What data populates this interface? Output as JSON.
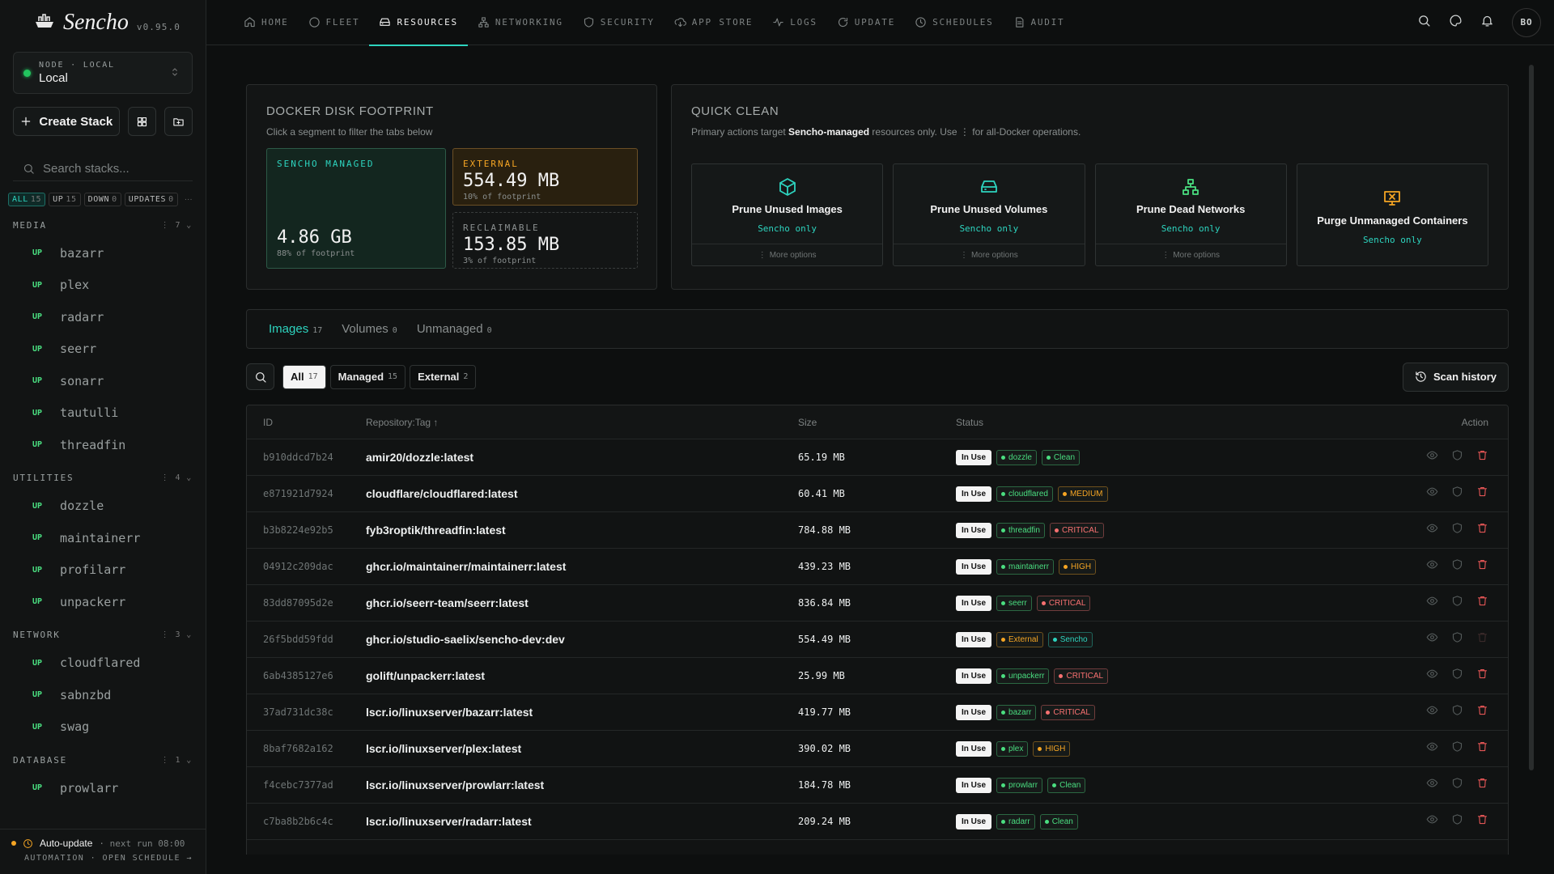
{
  "brand": {
    "name": "Sencho",
    "version": "v0.95.0"
  },
  "nav": {
    "items": [
      "HOME",
      "FLEET",
      "RESOURCES",
      "NETWORKING",
      "SECURITY",
      "APP STORE",
      "LOGS",
      "UPDATE",
      "SCHEDULES",
      "AUDIT"
    ],
    "active": "RESOURCES"
  },
  "user": "BO",
  "node": {
    "label": "NODE · LOCAL",
    "name": "Local"
  },
  "create_stack": "Create Stack",
  "search_placeholder": "Search stacks...",
  "filters": {
    "items": [
      {
        "label": "ALL",
        "count": 15
      },
      {
        "label": "UP",
        "count": 15
      },
      {
        "label": "DOWN",
        "count": 0
      },
      {
        "label": "UPDATES",
        "count": 0
      }
    ],
    "active": "ALL"
  },
  "groups": [
    {
      "name": "MEDIA",
      "count": 7,
      "stacks": [
        {
          "status": "UP",
          "name": "bazarr"
        },
        {
          "status": "UP",
          "name": "plex"
        },
        {
          "status": "UP",
          "name": "radarr"
        },
        {
          "status": "UP",
          "name": "seerr"
        },
        {
          "status": "UP",
          "name": "sonarr"
        },
        {
          "status": "UP",
          "name": "tautulli"
        },
        {
          "status": "UP",
          "name": "threadfin"
        }
      ]
    },
    {
      "name": "UTILITIES",
      "count": 4,
      "stacks": [
        {
          "status": "UP",
          "name": "dozzle"
        },
        {
          "status": "UP",
          "name": "maintainerr"
        },
        {
          "status": "UP",
          "name": "profilarr"
        },
        {
          "status": "UP",
          "name": "unpackerr"
        }
      ]
    },
    {
      "name": "NETWORK",
      "count": 3,
      "stacks": [
        {
          "status": "UP",
          "name": "cloudflared"
        },
        {
          "status": "UP",
          "name": "sabnzbd"
        },
        {
          "status": "UP",
          "name": "swag"
        }
      ]
    },
    {
      "name": "DATABASE",
      "count": 1,
      "stacks": [
        {
          "status": "UP",
          "name": "prowlarr"
        }
      ]
    }
  ],
  "footer": {
    "auto_update": "Auto-update",
    "next_run": "· next run 08:00",
    "links": "AUTOMATION · OPEN SCHEDULE →"
  },
  "footprint": {
    "title": "DOCKER DISK FOOTPRINT",
    "subtitle": "Click a segment to filter the tabs below",
    "segments": [
      {
        "label": "SENCHO MANAGED",
        "size": "4.86 GB",
        "share": "88% of footprint"
      },
      {
        "label": "EXTERNAL",
        "size": "554.49 MB",
        "share": "10% of footprint"
      },
      {
        "label": "RECLAIMABLE",
        "size": "153.85 MB",
        "share": "3% of footprint"
      }
    ]
  },
  "quick_clean": {
    "title": "QUICK CLEAN",
    "note": {
      "before": "Primary actions target ",
      "strong": "Sencho-managed",
      "after": " resources only. Use ⋮ for all-Docker operations."
    },
    "actions": [
      {
        "title": "Prune Unused Images",
        "scope": "Sencho only",
        "more": "More options"
      },
      {
        "title": "Prune Unused Volumes",
        "scope": "Sencho only",
        "more": "More options"
      },
      {
        "title": "Prune Dead Networks",
        "scope": "Sencho only",
        "more": "More options"
      },
      {
        "title": "Purge Unmanaged Containers",
        "scope": "Sencho only"
      }
    ]
  },
  "tabs": {
    "items": [
      {
        "label": "Images",
        "count": 17
      },
      {
        "label": "Volumes",
        "count": 0
      },
      {
        "label": "Unmanaged",
        "count": 0
      }
    ],
    "active": "Images"
  },
  "chips": {
    "items": [
      {
        "label": "All",
        "count": 17
      },
      {
        "label": "Managed",
        "count": 15
      },
      {
        "label": "External",
        "count": 2
      }
    ],
    "active": "All"
  },
  "scan_history": "Scan history",
  "table": {
    "columns": [
      "ID",
      "Repository:Tag",
      "Size",
      "Status",
      "Action"
    ],
    "rows": [
      {
        "id": "b910ddcd7b24",
        "repo": "amir20/dozzle:latest",
        "size": "65.19 MB",
        "state": "In Use",
        "tags": [
          {
            "text": "dozzle",
            "color": "#4ade80"
          },
          {
            "text": "Clean",
            "color": "#4ade80"
          }
        ]
      },
      {
        "id": "e871921d7924",
        "repo": "cloudflare/cloudflared:latest",
        "size": "60.41 MB",
        "state": "In Use",
        "tags": [
          {
            "text": "cloudflared",
            "color": "#4ade80"
          },
          {
            "text": "MEDIUM",
            "color": "#f5a524"
          }
        ]
      },
      {
        "id": "b3b8224e92b5",
        "repo": "fyb3roptik/threadfin:latest",
        "size": "784.88 MB",
        "state": "In Use",
        "tags": [
          {
            "text": "threadfin",
            "color": "#4ade80"
          },
          {
            "text": "CRITICAL",
            "color": "#f87171"
          }
        ]
      },
      {
        "id": "04912c209dac",
        "repo": "ghcr.io/maintainerr/maintainerr:latest",
        "size": "439.23 MB",
        "state": "In Use",
        "tags": [
          {
            "text": "maintainerr",
            "color": "#4ade80"
          },
          {
            "text": "HIGH",
            "color": "#f5a524"
          }
        ]
      },
      {
        "id": "83dd87095d2e",
        "repo": "ghcr.io/seerr-team/seerr:latest",
        "size": "836.84 MB",
        "state": "In Use",
        "tags": [
          {
            "text": "seerr",
            "color": "#4ade80"
          },
          {
            "text": "CRITICAL",
            "color": "#f87171"
          }
        ]
      },
      {
        "id": "26f5bdd59fdd",
        "repo": "ghcr.io/studio-saelix/sencho-dev:dev",
        "size": "554.49 MB",
        "state": "In Use",
        "tags": [
          {
            "text": "External",
            "color": "#f5a524"
          },
          {
            "text": "Sencho",
            "color": "#2dd4bf"
          }
        ]
      },
      {
        "id": "6ab4385127e6",
        "repo": "golift/unpackerr:latest",
        "size": "25.99 MB",
        "state": "In Use",
        "tags": [
          {
            "text": "unpackerr",
            "color": "#4ade80"
          },
          {
            "text": "CRITICAL",
            "color": "#f87171"
          }
        ]
      },
      {
        "id": "37ad731dc38c",
        "repo": "lscr.io/linuxserver/bazarr:latest",
        "size": "419.77 MB",
        "state": "In Use",
        "tags": [
          {
            "text": "bazarr",
            "color": "#4ade80"
          },
          {
            "text": "CRITICAL",
            "color": "#f87171"
          }
        ]
      },
      {
        "id": "8baf7682a162",
        "repo": "lscr.io/linuxserver/plex:latest",
        "size": "390.02 MB",
        "state": "In Use",
        "tags": [
          {
            "text": "plex",
            "color": "#4ade80"
          },
          {
            "text": "HIGH",
            "color": "#f5a524"
          }
        ]
      },
      {
        "id": "f4cebc7377ad",
        "repo": "lscr.io/linuxserver/prowlarr:latest",
        "size": "184.78 MB",
        "state": "In Use",
        "tags": [
          {
            "text": "prowlarr",
            "color": "#4ade80"
          },
          {
            "text": "Clean",
            "color": "#4ade80"
          }
        ]
      },
      {
        "id": "c7ba8b2b6c4c",
        "repo": "lscr.io/linuxserver/radarr:latest",
        "size": "209.24 MB",
        "state": "In Use",
        "tags": [
          {
            "text": "radarr",
            "color": "#4ade80"
          },
          {
            "text": "Clean",
            "color": "#4ade80"
          }
        ]
      }
    ]
  }
}
